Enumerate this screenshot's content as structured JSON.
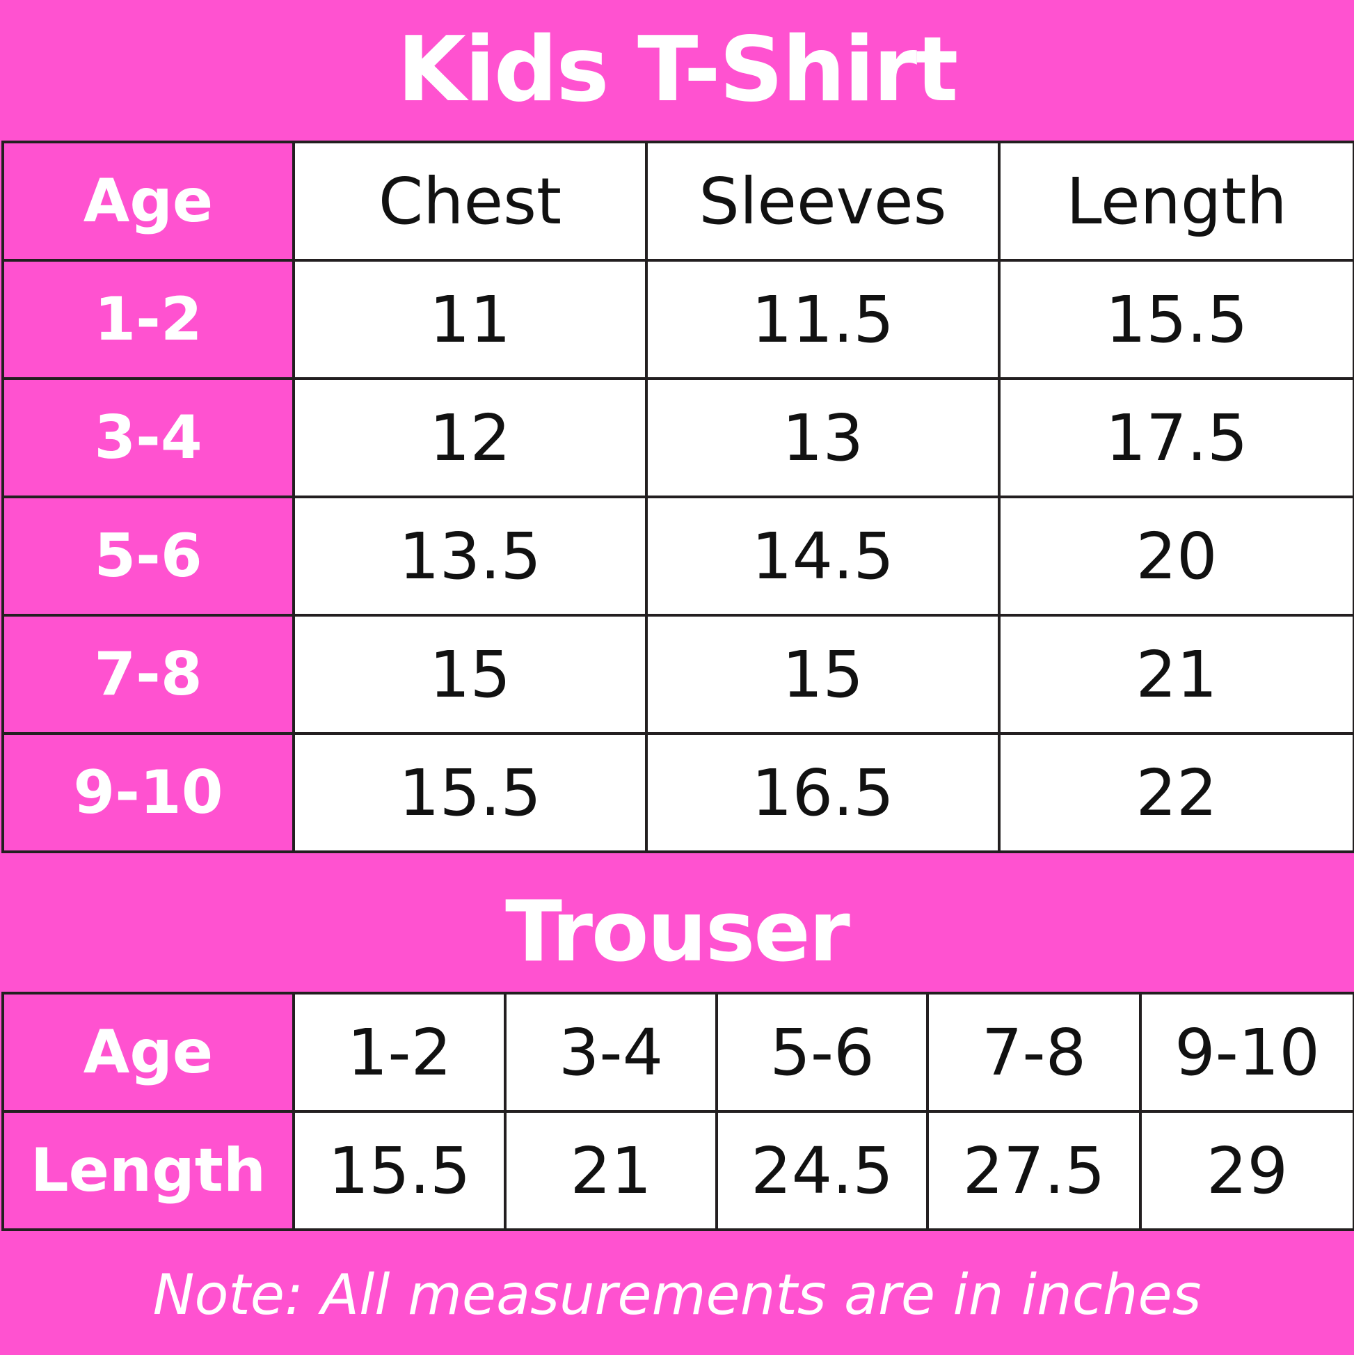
{
  "colors": {
    "brand_pink": "#FF52D0",
    "border": "#231f20"
  },
  "tshirt": {
    "title": "Kids T-Shirt",
    "headers": [
      "Age",
      "Chest",
      "Sleeves",
      "Length"
    ],
    "rows": [
      [
        "1-2",
        "11",
        "11.5",
        "15.5"
      ],
      [
        "3-4",
        "12",
        "13",
        "17.5"
      ],
      [
        "5-6",
        "13.5",
        "14.5",
        "20"
      ],
      [
        "7-8",
        "15",
        "15",
        "21"
      ],
      [
        "9-10",
        "15.5",
        "16.5",
        "22"
      ]
    ]
  },
  "trouser": {
    "title": "Trouser",
    "rows": [
      [
        "Age",
        "1-2",
        "3-4",
        "5-6",
        "7-8",
        "9-10"
      ],
      [
        "Length",
        "15.5",
        "21",
        "24.5",
        "27.5",
        "29"
      ]
    ]
  },
  "note": "Note: All measurements are in inches"
}
